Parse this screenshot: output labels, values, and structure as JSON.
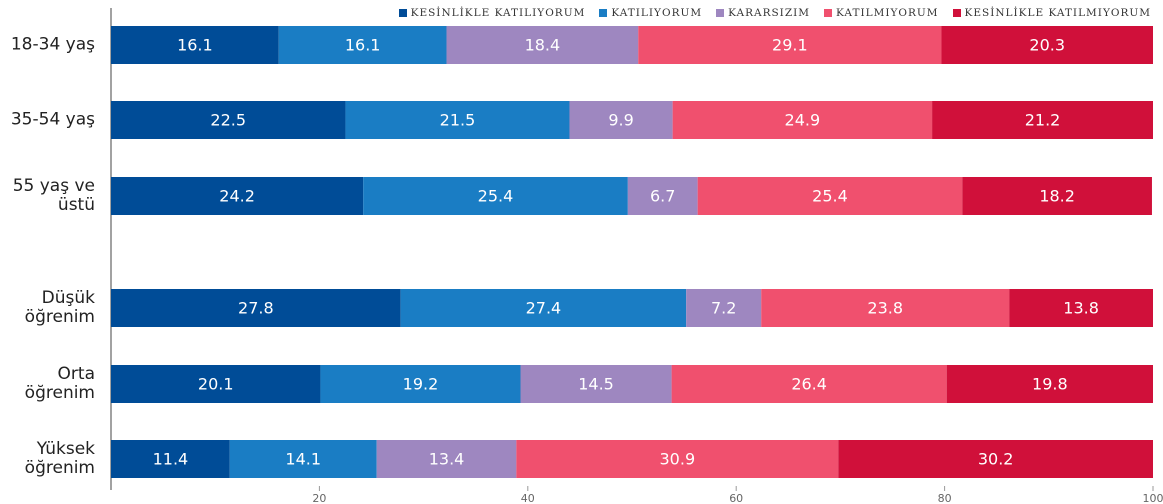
{
  "chart_data": {
    "type": "stacked-bar-horizontal",
    "categories": [
      "18-34 yaş",
      "35-54 yaş",
      "55 yaş ve üstü",
      "Düşük öğrenim",
      "Orta öğrenim",
      "Yüksek öğrenim"
    ],
    "series": [
      {
        "name": "KESİNLİKLE KATILIYORUM",
        "color": "#004c97",
        "values": [
          16.1,
          22.5,
          24.2,
          27.8,
          20.1,
          11.4
        ]
      },
      {
        "name": "KATILIYORUM",
        "color": "#1a7dc4",
        "values": [
          16.1,
          21.5,
          25.4,
          27.4,
          19.2,
          14.1
        ]
      },
      {
        "name": "KARARSIZIM",
        "color": "#9e87c0",
        "values": [
          18.4,
          9.9,
          6.7,
          7.2,
          14.5,
          13.4
        ]
      },
      {
        "name": "KATILMIYORUM",
        "color": "#f0506e",
        "values": [
          29.1,
          24.9,
          25.4,
          23.8,
          26.4,
          30.9
        ]
      },
      {
        "name": "KESİNLİKLE KATILMIYORUM",
        "color": "#d0103a",
        "values": [
          20.3,
          21.2,
          18.2,
          13.8,
          19.8,
          30.2
        ]
      }
    ],
    "xlim": [
      0,
      100
    ],
    "xticks": [
      20,
      40,
      60,
      80,
      100
    ]
  }
}
